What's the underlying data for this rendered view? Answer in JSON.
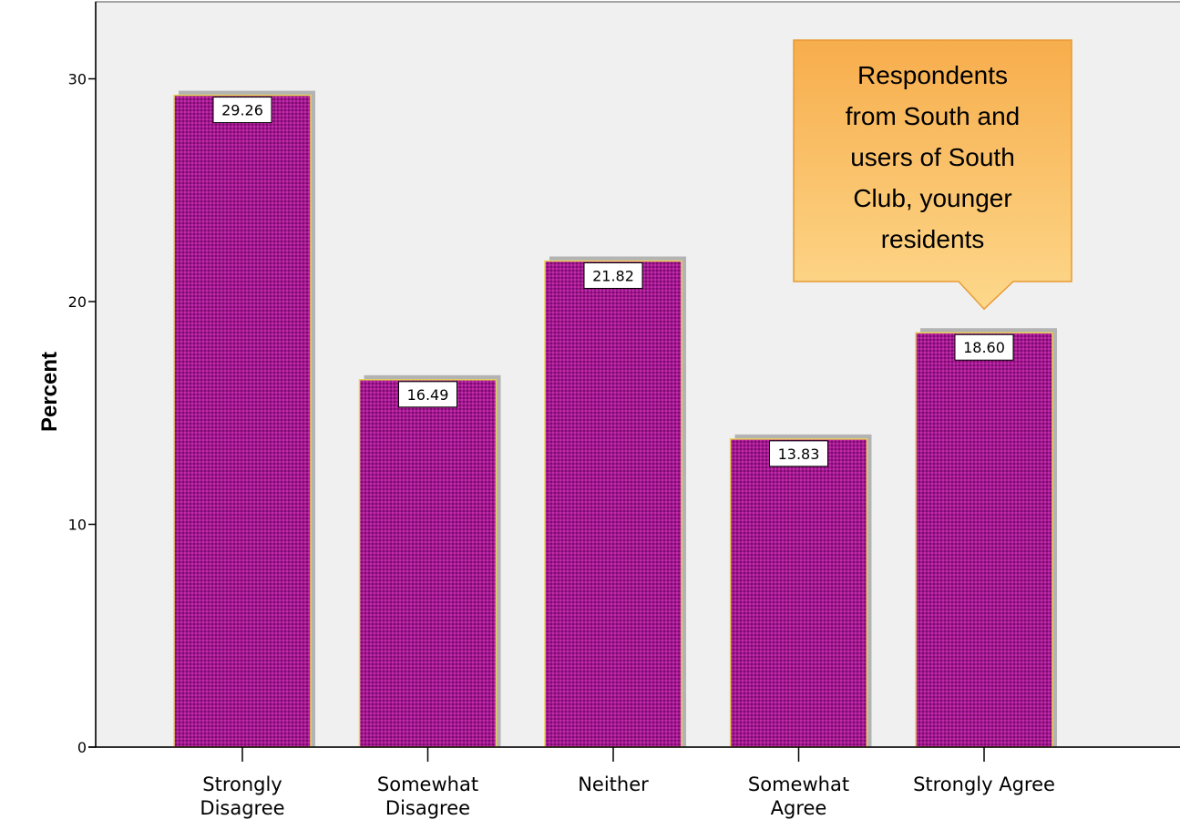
{
  "chart_data": {
    "type": "bar",
    "categories": [
      [
        "Strongly",
        "Disagree"
      ],
      [
        "Somewhat",
        "Disagree"
      ],
      [
        "Neither"
      ],
      [
        "Somewhat",
        "Agree"
      ],
      [
        "Strongly Agree"
      ]
    ],
    "values": [
      29.26,
      16.49,
      21.82,
      13.83,
      18.6
    ],
    "value_labels": [
      "29.26",
      "16.49",
      "21.82",
      "13.83",
      "18.60"
    ],
    "ylabel": "Percent",
    "ylim": [
      0,
      33
    ],
    "yticks": [
      0,
      10,
      20,
      30
    ],
    "grid": false,
    "colors": {
      "bar_fill": "#a0188f",
      "bar_pattern": "#6e0a66",
      "bar_border": "#e8d35a",
      "bar_shadow": "#b3b3b3",
      "plot_background": "#f0f0f0",
      "callout_top": "#f7ad4c",
      "callout_bottom": "#fdd88b"
    },
    "annotations": [
      {
        "category_index": 4,
        "lines": [
          "Respondents",
          "from South and",
          "users of South",
          "Club, younger",
          "residents"
        ]
      }
    ]
  }
}
